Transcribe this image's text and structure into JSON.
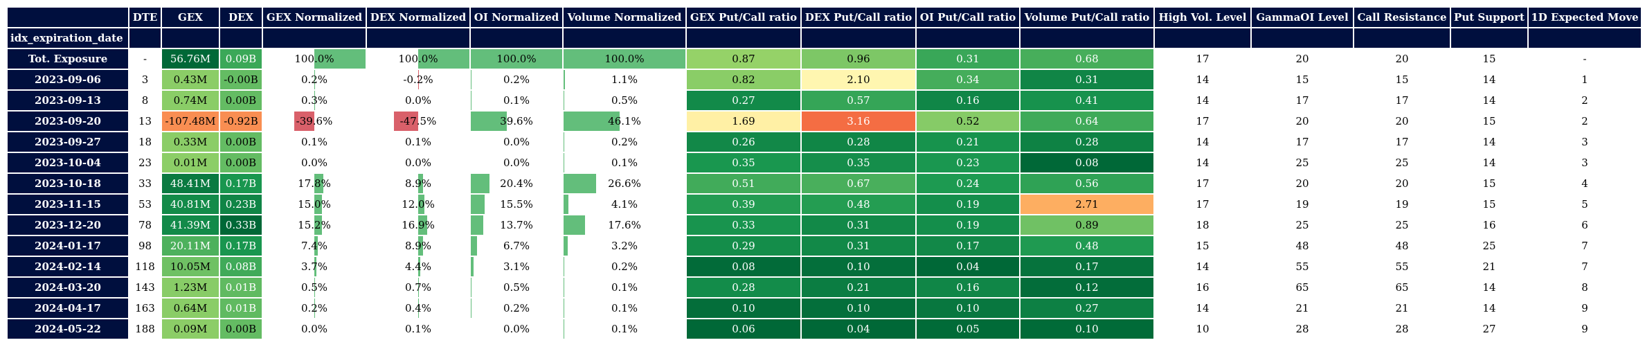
{
  "columns": [
    "DTE",
    "GEX",
    "DEX",
    "GEX Normalized",
    "DEX Normalized",
    "OI Normalized",
    "Volume Normalized",
    "GEX Put/Call ratio",
    "DEX Put/Call ratio",
    "OI Put/Call ratio",
    "Volume Put/Call ratio",
    "High Vol. Level",
    "GammaOI Level",
    "Call Resistance",
    "Put Support",
    "1D Expected Move"
  ],
  "index_name": "idx_expiration_date",
  "rows": [
    {
      "label": "Tot. Exposure",
      "dte": "-",
      "gex": "56.76M",
      "dex": "0.09B",
      "gex_norm": "100.0%",
      "dex_norm": "100.0%",
      "oi_norm": "100.0%",
      "vol_norm": "100.0%",
      "gex_pc": "0.87",
      "dex_pc": "0.96",
      "oi_pc": "0.31",
      "vol_pc": "0.68",
      "hvl": "17",
      "gammaoi": "20",
      "call_res": "20",
      "put_sup": "15",
      "exp_move": "-"
    },
    {
      "label": "2023-09-06",
      "dte": "3",
      "gex": "0.43M",
      "dex": "-0.00B",
      "gex_norm": "0.2%",
      "dex_norm": "-0.2%",
      "oi_norm": "0.2%",
      "vol_norm": "1.1%",
      "gex_pc": "0.82",
      "dex_pc": "2.10",
      "oi_pc": "0.34",
      "vol_pc": "0.31",
      "hvl": "14",
      "gammaoi": "15",
      "call_res": "15",
      "put_sup": "14",
      "exp_move": "1"
    },
    {
      "label": "2023-09-13",
      "dte": "8",
      "gex": "0.74M",
      "dex": "0.00B",
      "gex_norm": "0.3%",
      "dex_norm": "0.0%",
      "oi_norm": "0.1%",
      "vol_norm": "0.5%",
      "gex_pc": "0.27",
      "dex_pc": "0.57",
      "oi_pc": "0.16",
      "vol_pc": "0.41",
      "hvl": "14",
      "gammaoi": "17",
      "call_res": "17",
      "put_sup": "14",
      "exp_move": "2"
    },
    {
      "label": "2023-09-20",
      "dte": "13",
      "gex": "-107.48M",
      "dex": "-0.92B",
      "gex_norm": "-39.6%",
      "dex_norm": "-47.5%",
      "oi_norm": "39.6%",
      "vol_norm": "46.1%",
      "gex_pc": "1.69",
      "dex_pc": "3.16",
      "oi_pc": "0.52",
      "vol_pc": "0.64",
      "hvl": "17",
      "gammaoi": "20",
      "call_res": "20",
      "put_sup": "15",
      "exp_move": "2"
    },
    {
      "label": "2023-09-27",
      "dte": "18",
      "gex": "0.33M",
      "dex": "0.00B",
      "gex_norm": "0.1%",
      "dex_norm": "0.1%",
      "oi_norm": "0.0%",
      "vol_norm": "0.2%",
      "gex_pc": "0.26",
      "dex_pc": "0.28",
      "oi_pc": "0.21",
      "vol_pc": "0.28",
      "hvl": "14",
      "gammaoi": "17",
      "call_res": "17",
      "put_sup": "14",
      "exp_move": "3"
    },
    {
      "label": "2023-10-04",
      "dte": "23",
      "gex": "0.01M",
      "dex": "0.00B",
      "gex_norm": "0.0%",
      "dex_norm": "0.0%",
      "oi_norm": "0.0%",
      "vol_norm": "0.1%",
      "gex_pc": "0.35",
      "dex_pc": "0.35",
      "oi_pc": "0.23",
      "vol_pc": "0.08",
      "hvl": "14",
      "gammaoi": "25",
      "call_res": "25",
      "put_sup": "14",
      "exp_move": "3"
    },
    {
      "label": "2023-10-18",
      "dte": "33",
      "gex": "48.41M",
      "dex": "0.17B",
      "gex_norm": "17.8%",
      "dex_norm": "8.9%",
      "oi_norm": "20.4%",
      "vol_norm": "26.6%",
      "gex_pc": "0.51",
      "dex_pc": "0.67",
      "oi_pc": "0.24",
      "vol_pc": "0.56",
      "hvl": "17",
      "gammaoi": "20",
      "call_res": "20",
      "put_sup": "15",
      "exp_move": "4"
    },
    {
      "label": "2023-11-15",
      "dte": "53",
      "gex": "40.81M",
      "dex": "0.23B",
      "gex_norm": "15.0%",
      "dex_norm": "12.0%",
      "oi_norm": "15.5%",
      "vol_norm": "4.1%",
      "gex_pc": "0.39",
      "dex_pc": "0.48",
      "oi_pc": "0.19",
      "vol_pc": "2.71",
      "hvl": "17",
      "gammaoi": "19",
      "call_res": "19",
      "put_sup": "15",
      "exp_move": "5"
    },
    {
      "label": "2023-12-20",
      "dte": "78",
      "gex": "41.39M",
      "dex": "0.33B",
      "gex_norm": "15.2%",
      "dex_norm": "16.9%",
      "oi_norm": "13.7%",
      "vol_norm": "17.6%",
      "gex_pc": "0.33",
      "dex_pc": "0.31",
      "oi_pc": "0.19",
      "vol_pc": "0.89",
      "hvl": "18",
      "gammaoi": "25",
      "call_res": "25",
      "put_sup": "16",
      "exp_move": "6"
    },
    {
      "label": "2024-01-17",
      "dte": "98",
      "gex": "20.11M",
      "dex": "0.17B",
      "gex_norm": "7.4%",
      "dex_norm": "8.9%",
      "oi_norm": "6.7%",
      "vol_norm": "3.2%",
      "gex_pc": "0.29",
      "dex_pc": "0.31",
      "oi_pc": "0.17",
      "vol_pc": "0.48",
      "hvl": "15",
      "gammaoi": "48",
      "call_res": "48",
      "put_sup": "25",
      "exp_move": "7"
    },
    {
      "label": "2024-02-14",
      "dte": "118",
      "gex": "10.05M",
      "dex": "0.08B",
      "gex_norm": "3.7%",
      "dex_norm": "4.4%",
      "oi_norm": "3.1%",
      "vol_norm": "0.2%",
      "gex_pc": "0.08",
      "dex_pc": "0.10",
      "oi_pc": "0.04",
      "vol_pc": "0.17",
      "hvl": "14",
      "gammaoi": "55",
      "call_res": "55",
      "put_sup": "21",
      "exp_move": "7"
    },
    {
      "label": "2024-03-20",
      "dte": "143",
      "gex": "1.23M",
      "dex": "0.01B",
      "gex_norm": "0.5%",
      "dex_norm": "0.7%",
      "oi_norm": "0.5%",
      "vol_norm": "0.1%",
      "gex_pc": "0.28",
      "dex_pc": "0.21",
      "oi_pc": "0.16",
      "vol_pc": "0.12",
      "hvl": "16",
      "gammaoi": "65",
      "call_res": "65",
      "put_sup": "14",
      "exp_move": "8"
    },
    {
      "label": "2024-04-17",
      "dte": "163",
      "gex": "0.64M",
      "dex": "0.01B",
      "gex_norm": "0.2%",
      "dex_norm": "0.4%",
      "oi_norm": "0.2%",
      "vol_norm": "0.1%",
      "gex_pc": "0.10",
      "dex_pc": "0.10",
      "oi_pc": "0.10",
      "vol_pc": "0.27",
      "hvl": "14",
      "gammaoi": "21",
      "call_res": "21",
      "put_sup": "14",
      "exp_move": "9"
    },
    {
      "label": "2024-05-22",
      "dte": "188",
      "gex": "0.09M",
      "dex": "0.00B",
      "gex_norm": "0.0%",
      "dex_norm": "0.1%",
      "oi_norm": "0.0%",
      "vol_norm": "0.1%",
      "gex_pc": "0.06",
      "dex_pc": "0.04",
      "oi_pc": "0.05",
      "vol_pc": "0.10",
      "hvl": "10",
      "gammaoi": "28",
      "call_res": "28",
      "put_sup": "27",
      "exp_move": "9"
    }
  ],
  "colors": {
    "header_bg": "#000f3e",
    "bar_positive": "#63be7b",
    "bar_negative": "#d9606a"
  }
}
